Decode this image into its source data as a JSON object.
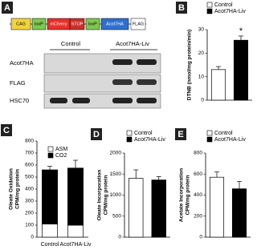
{
  "panel_a": {
    "panel": "A",
    "construct": [
      "CAG",
      "loxP",
      "mCherry",
      "STOP",
      "loxP",
      "Acot7HA",
      "FLAG"
    ],
    "groups": [
      "Control",
      "Acot7HA-Liv"
    ],
    "rows": [
      "Acot7HA",
      "FLAG",
      "HSC70"
    ]
  },
  "chart_data": [
    {
      "type": "bar",
      "panel": "B",
      "ylabel": "DTNB (nmol/mg protein/min)",
      "ylim": [
        0,
        30
      ],
      "yticks": [
        0,
        10,
        20,
        30
      ],
      "legend": "top-left",
      "annotation": "*",
      "series": [
        {
          "name": "Control",
          "color": "#ffffff",
          "values": [
            13
          ],
          "errors": [
            1.3
          ]
        },
        {
          "name": "Acot7HA-Liv",
          "color": "#000000",
          "values": [
            25.5
          ],
          "errors": [
            1.8
          ]
        }
      ]
    },
    {
      "type": "stacked_bar",
      "panel": "C",
      "ylabel": [
        "Oleate Oxidation",
        "CPM/mg protein"
      ],
      "ylim": [
        0,
        800
      ],
      "yticks": [
        0,
        100,
        200,
        300,
        400,
        500,
        600,
        700,
        800
      ],
      "legend": "top-left",
      "categories": [
        "Control",
        "Acot7HA-Liv"
      ],
      "series": [
        {
          "name": "ASM",
          "color": "#ffffff",
          "values": [
            110,
            100
          ],
          "errors": [
            10,
            8
          ]
        },
        {
          "name": "CO2",
          "color": "#000000",
          "values": [
            450,
            475
          ],
          "errors": [
            30,
            65
          ]
        }
      ]
    },
    {
      "type": "bar",
      "panel": "D",
      "ylabel": [
        "Oleate Incorporation",
        "CPM/mg protein"
      ],
      "ylim": [
        0,
        2000
      ],
      "yticks": [
        0,
        500,
        1000,
        1500,
        2000
      ],
      "legend": "top-left",
      "series": [
        {
          "name": "Control",
          "color": "#ffffff",
          "values": [
            1400
          ],
          "errors": [
            200
          ]
        },
        {
          "name": "Acot7HA-Liv",
          "color": "#000000",
          "values": [
            1360
          ],
          "errors": [
            80
          ]
        }
      ]
    },
    {
      "type": "bar",
      "panel": "E",
      "ylabel": [
        "Acetate Incorporation",
        "CPM/mg protein"
      ],
      "ylim": [
        0,
        800
      ],
      "yticks": [
        0,
        200,
        400,
        600,
        800
      ],
      "legend": "top-left",
      "series": [
        {
          "name": "Control",
          "color": "#ffffff",
          "values": [
            570
          ],
          "errors": [
            50
          ]
        },
        {
          "name": "Acot7HA-Liv",
          "color": "#000000",
          "values": [
            460
          ],
          "errors": [
            70
          ]
        }
      ]
    }
  ]
}
